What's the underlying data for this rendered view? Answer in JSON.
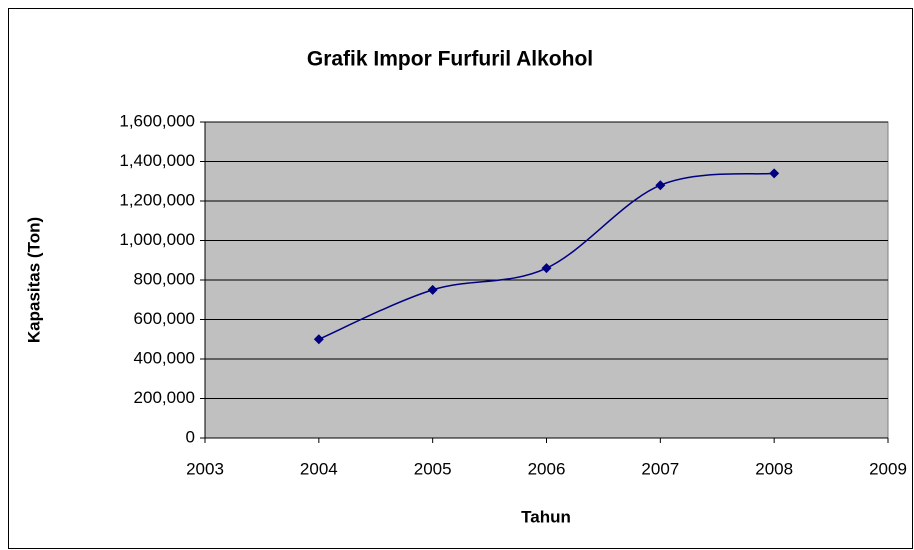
{
  "chart_data": {
    "type": "line",
    "title": "Grafik Impor Furfuril Alkohol",
    "x_label": "Tahun",
    "y_label": "Kapasitas (Ton)",
    "x": [
      2004,
      2005,
      2006,
      2007,
      2008
    ],
    "series": [
      {
        "name": "Kapasitas",
        "color": "#000080",
        "values": [
          500000,
          750000,
          860000,
          1280000,
          1340000
        ]
      }
    ],
    "xlim": [
      2003,
      2009
    ],
    "xticks": [
      2003,
      2004,
      2005,
      2006,
      2007,
      2008,
      2009
    ],
    "ylim": [
      0,
      1600000
    ],
    "yticks": [
      0,
      {
        "value": 200000,
        "label": "200,000"
      },
      {
        "value": 400000,
        "label": "400,000"
      },
      {
        "value": 600000,
        "label": "600,000"
      },
      {
        "value": 800000,
        "label": "800,000"
      },
      {
        "value": 1000000,
        "label": "1,000,000"
      },
      {
        "value": 1200000,
        "label": "1,200,000"
      },
      {
        "value": 1400000,
        "label": "1,400,000"
      },
      {
        "value": 1600000,
        "label": "1,600,000"
      }
    ],
    "grid": true,
    "smooth": true,
    "plot_background": "#c0c0c0"
  }
}
